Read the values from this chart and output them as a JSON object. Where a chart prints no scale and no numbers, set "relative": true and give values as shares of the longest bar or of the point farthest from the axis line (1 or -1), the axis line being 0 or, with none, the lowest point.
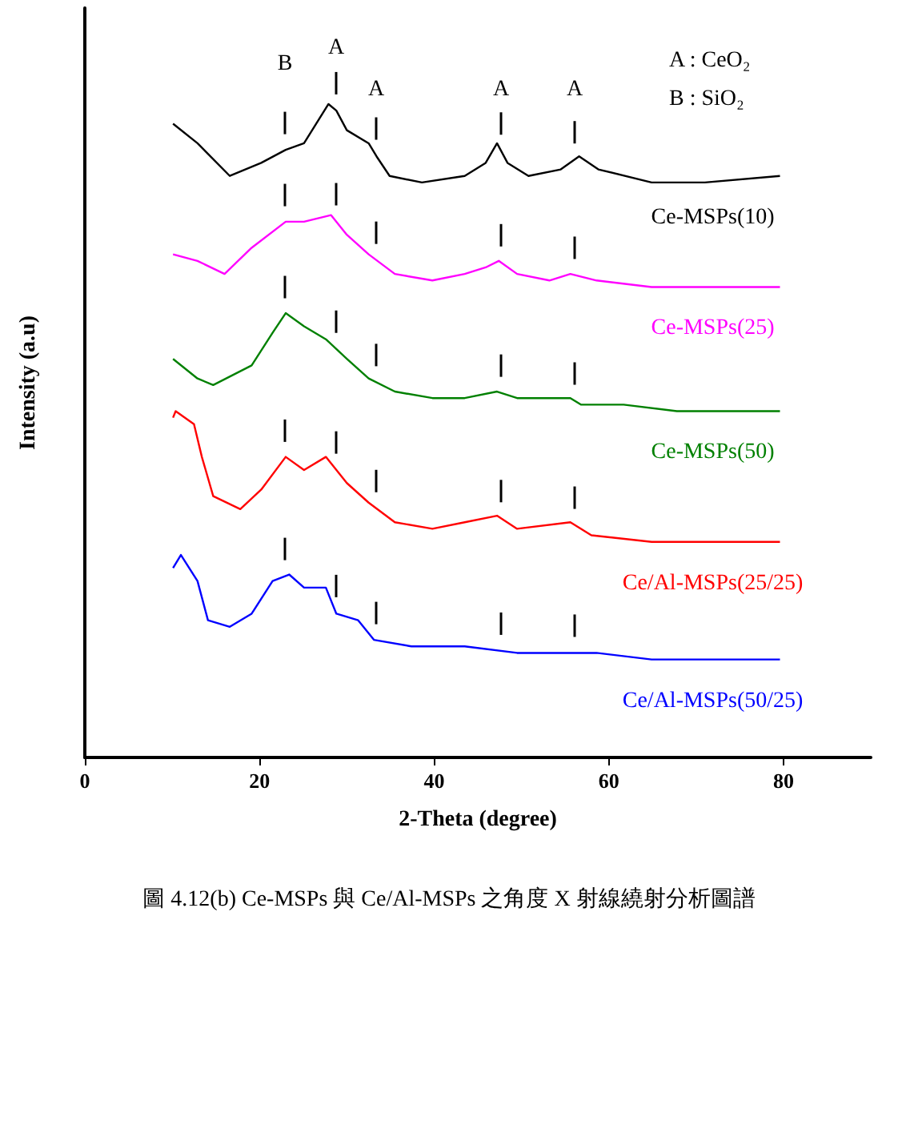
{
  "chart_data": {
    "type": "line",
    "relative": true,
    "xlabel": "2-Theta (degree)",
    "ylabel": "Intensity (a.u)",
    "xlim": [
      0,
      90
    ],
    "xticks": [
      0,
      20,
      40,
      60,
      80
    ],
    "tick_labels": "x",
    "marker": "none",
    "series": [
      {
        "name": "Ce-MSPs(10)",
        "color": "#000000",
        "x": [
          10.1,
          12.9,
          16.6,
          20.2,
          23.0,
          25.1,
          27.9,
          28.8,
          30.0,
          32.5,
          33.4,
          34.9,
          38.6,
          43.5,
          45.9,
          47.2,
          48.4,
          50.8,
          54.5,
          56.6,
          58.8,
          64.9,
          71.0,
          79.6
        ],
        "values": [
          0.97,
          0.94,
          0.89,
          0.91,
          0.93,
          0.94,
          1.0,
          0.99,
          0.96,
          0.94,
          0.92,
          0.89,
          0.88,
          0.89,
          0.91,
          0.94,
          0.91,
          0.89,
          0.9,
          0.92,
          0.9,
          0.88,
          0.88,
          0.89
        ]
      },
      {
        "name": "Ce-MSPs(25)",
        "color": "#ff00ff",
        "x": [
          10.1,
          12.9,
          16.0,
          19.1,
          23.0,
          25.1,
          28.2,
          30.0,
          32.5,
          35.5,
          39.8,
          43.5,
          45.9,
          47.4,
          49.5,
          53.2,
          55.6,
          58.6,
          64.9,
          71.0,
          79.6
        ],
        "values": [
          0.77,
          0.76,
          0.74,
          0.78,
          0.82,
          0.82,
          0.83,
          0.8,
          0.77,
          0.74,
          0.73,
          0.74,
          0.75,
          0.76,
          0.74,
          0.73,
          0.74,
          0.73,
          0.72,
          0.72,
          0.72
        ]
      },
      {
        "name": "Ce-MSPs(50)",
        "color": "#008000",
        "x": [
          10.1,
          12.9,
          14.7,
          19.1,
          21.5,
          23.0,
          25.1,
          27.6,
          30.0,
          32.5,
          35.5,
          39.8,
          43.5,
          47.2,
          49.5,
          55.6,
          56.8,
          61.7,
          67.8,
          79.6
        ],
        "values": [
          0.61,
          0.58,
          0.57,
          0.6,
          0.65,
          0.68,
          0.66,
          0.64,
          0.61,
          0.58,
          0.56,
          0.55,
          0.55,
          0.56,
          0.55,
          0.55,
          0.54,
          0.54,
          0.53,
          0.53
        ]
      },
      {
        "name": "Ce/Al-MSPs(25/25)",
        "color": "#ff0000",
        "x": [
          10.1,
          10.4,
          12.5,
          13.4,
          14.7,
          17.8,
          20.2,
          23.0,
          25.1,
          27.6,
          30.0,
          32.5,
          35.5,
          39.8,
          43.5,
          47.2,
          49.5,
          55.6,
          58.0,
          64.9,
          71.0,
          79.6
        ],
        "values": [
          0.52,
          0.53,
          0.51,
          0.46,
          0.4,
          0.38,
          0.41,
          0.46,
          0.44,
          0.46,
          0.42,
          0.39,
          0.36,
          0.35,
          0.36,
          0.37,
          0.35,
          0.36,
          0.34,
          0.33,
          0.33,
          0.33
        ]
      },
      {
        "name": "Ce/Al-MSPs(50/25)",
        "color": "#0000ff",
        "x": [
          10.1,
          11.0,
          12.9,
          14.1,
          16.6,
          19.1,
          21.5,
          23.4,
          25.1,
          27.6,
          28.8,
          31.3,
          33.1,
          37.4,
          43.5,
          49.5,
          55.6,
          58.6,
          64.9,
          71.0,
          79.6
        ],
        "values": [
          0.29,
          0.31,
          0.27,
          0.21,
          0.2,
          0.22,
          0.27,
          0.28,
          0.26,
          0.26,
          0.22,
          0.21,
          0.18,
          0.17,
          0.17,
          0.16,
          0.16,
          0.16,
          0.15,
          0.15,
          0.15
        ]
      }
    ],
    "annotations": [
      "B",
      "A",
      "A",
      "A",
      "A",
      "A : CeO₂",
      "B : SiO₂",
      "圖 4.12(b) Ce-MSPs 與 Ce/Al-MSPs 之角度 X 射線繞射分析圖譜"
    ]
  }
}
